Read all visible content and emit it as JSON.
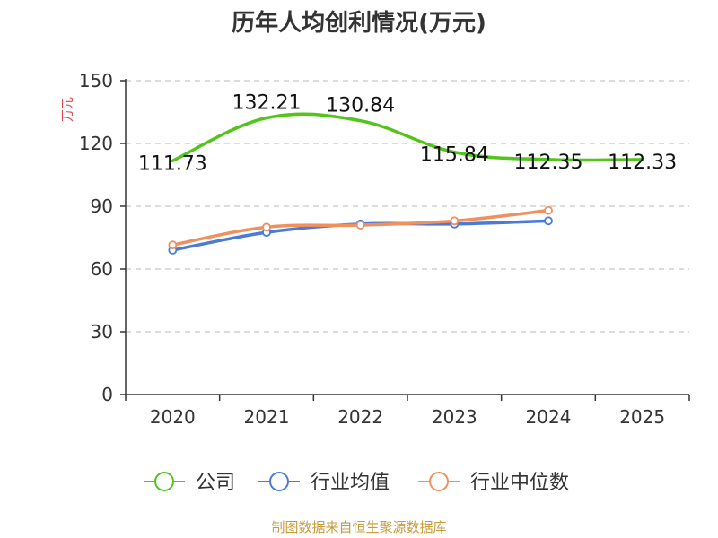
{
  "chart_data": {
    "type": "line",
    "title": "历年人均创利情况(万元)",
    "ylabel": "万元",
    "xlabel": "",
    "categories": [
      "2020",
      "2021",
      "2022",
      "2023",
      "2024",
      "2025"
    ],
    "ylim": [
      0,
      150
    ],
    "yticks": [
      0,
      30,
      60,
      90,
      120,
      150
    ],
    "grid": true,
    "legend_position": "bottom",
    "series": [
      {
        "name": "公司",
        "color": "#52c41a",
        "values": [
          111.73,
          132.21,
          130.84,
          115.84,
          112.35,
          112.33
        ],
        "labels": [
          "111.73",
          "132.21",
          "130.84",
          "115.84",
          "112.35",
          "112.33"
        ]
      },
      {
        "name": "行业均值",
        "color": "#4a7bd9",
        "values": [
          69,
          77.5,
          81.5,
          81.5,
          83,
          null
        ]
      },
      {
        "name": "行业中位数",
        "color": "#f0905e",
        "values": [
          71.5,
          80,
          81,
          83,
          88,
          null
        ]
      }
    ]
  },
  "source": "制图数据来自恒生聚源数据库"
}
